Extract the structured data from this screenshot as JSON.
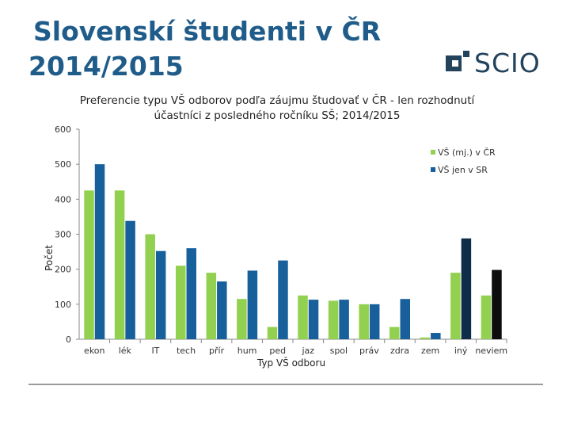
{
  "slide": {
    "title_line1": "Slovenskí študenti v ČR",
    "title_line2": "2014/2015"
  },
  "logo": {
    "text": "SCIO",
    "mark_color": "#23425c",
    "accent_color": "#1f8fd6"
  },
  "chart_data": {
    "type": "bar",
    "title": "Preferencie typu VŠ odborov podľa záujmu študovať v ČR - len rozhodnutí účastníci z posledného ročníku SŠ; 2014/2015",
    "xlabel": "Typ VŠ odboru",
    "ylabel": "Počet",
    "ylim": [
      0,
      600
    ],
    "yticks": [
      0,
      100,
      200,
      300,
      400,
      500,
      600
    ],
    "grid": false,
    "legend_position": "right",
    "categories": [
      "ekon",
      "lék",
      "IT",
      "tech",
      "přír",
      "hum",
      "ped",
      "jaz",
      "spol",
      "práv",
      "zdra",
      "zem",
      "iný",
      "neviem"
    ],
    "series": [
      {
        "name": "VŠ (mj.) v ČR",
        "color": "#92d050",
        "values": [
          425,
          425,
          300,
          210,
          190,
          115,
          35,
          125,
          110,
          100,
          35,
          5,
          190,
          125
        ]
      },
      {
        "name": "VŠ jen v SR",
        "color": "#17609b",
        "values": [
          500,
          338,
          252,
          260,
          165,
          196,
          225,
          113,
          113,
          100,
          115,
          18,
          288,
          198
        ]
      }
    ],
    "special_colors": {
      "iný": "#0f2d49",
      "neviem": "#0d0d0d"
    }
  }
}
